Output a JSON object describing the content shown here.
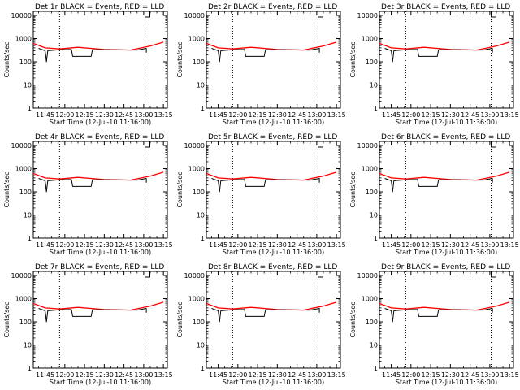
{
  "chart_data": [
    {
      "type": "line",
      "title": "Det 1r BLACK = Events, RED = LLD",
      "xlabel": "Start Time (12-Jul-10 11:36:00)",
      "ylabel": "Counts/sec",
      "x_tick_labels": [
        "11:45",
        "12:00",
        "12:15",
        "12:30",
        "12:45",
        "13:00",
        "13:15"
      ],
      "y_tick_labels": [
        "1",
        "10",
        "100",
        "1000",
        "10000"
      ],
      "xlim": [
        "11:36",
        "13:18"
      ],
      "ylim": [
        1,
        15000
      ],
      "y_scale": "log",
      "vlines": [
        "11:56",
        "13:01"
      ],
      "series": [
        {
          "color": "#ff0000",
          "x": [
            "11:36",
            "11:45",
            "11:56",
            "12:10",
            "12:30",
            "12:50",
            "13:05",
            "13:15"
          ],
          "values": [
            620,
            400,
            360,
            420,
            340,
            320,
            480,
            700
          ]
        },
        {
          "color": "#000000",
          "x": [
            "11:40",
            "11:45",
            "11:46",
            "11:47",
            "11:56",
            "12:05",
            "12:06",
            "12:20",
            "12:21",
            "12:35",
            "12:55",
            "13:02",
            "13:02"
          ],
          "values": [
            380,
            300,
            100,
            300,
            330,
            340,
            170,
            170,
            330,
            330,
            320,
            380,
            250
          ]
        }
      ]
    },
    {
      "type": "line",
      "title": "Det 2r BLACK = Events, RED = LLD",
      "xlabel": "Start Time (12-Jul-10 11:36:00)",
      "ylabel": "Counts/sec",
      "x_tick_labels": [
        "11:45",
        "12:00",
        "12:15",
        "12:30",
        "12:45",
        "13:00",
        "13:15"
      ],
      "y_tick_labels": [
        "1",
        "10",
        "100",
        "1000",
        "10000"
      ],
      "xlim": [
        "11:36",
        "13:18"
      ],
      "ylim": [
        1,
        15000
      ],
      "y_scale": "log",
      "vlines": [
        "11:56",
        "13:01"
      ],
      "series": [
        {
          "color": "#ff0000",
          "x": [
            "11:36",
            "11:45",
            "11:56",
            "12:10",
            "12:30",
            "12:50",
            "13:05",
            "13:15"
          ],
          "values": [
            620,
            400,
            360,
            420,
            340,
            320,
            480,
            700
          ]
        },
        {
          "color": "#000000",
          "x": [
            "11:40",
            "11:45",
            "11:46",
            "11:47",
            "11:56",
            "12:05",
            "12:06",
            "12:20",
            "12:21",
            "12:35",
            "12:55",
            "13:02",
            "13:02"
          ],
          "values": [
            380,
            300,
            100,
            300,
            330,
            340,
            170,
            170,
            330,
            330,
            320,
            380,
            250
          ]
        }
      ]
    },
    {
      "type": "line",
      "title": "Det 3r BLACK = Events, RED = LLD",
      "xlabel": "Start Time (12-Jul-10 11:36:00)",
      "ylabel": "Counts/sec",
      "x_tick_labels": [
        "11:45",
        "12:00",
        "12:15",
        "12:30",
        "12:45",
        "13:00",
        "13:15"
      ],
      "y_tick_labels": [
        "1",
        "10",
        "100",
        "1000",
        "10000"
      ],
      "xlim": [
        "11:36",
        "13:18"
      ],
      "ylim": [
        1,
        15000
      ],
      "y_scale": "log",
      "vlines": [
        "11:56",
        "13:01"
      ],
      "series": [
        {
          "color": "#ff0000",
          "x": [
            "11:36",
            "11:45",
            "11:56",
            "12:10",
            "12:30",
            "12:50",
            "13:05",
            "13:15"
          ],
          "values": [
            620,
            400,
            360,
            420,
            340,
            320,
            480,
            700
          ]
        },
        {
          "color": "#000000",
          "x": [
            "11:40",
            "11:45",
            "11:46",
            "11:47",
            "11:56",
            "12:05",
            "12:06",
            "12:20",
            "12:21",
            "12:35",
            "12:55",
            "13:02",
            "13:02"
          ],
          "values": [
            380,
            300,
            100,
            300,
            330,
            340,
            170,
            170,
            330,
            330,
            320,
            380,
            250
          ]
        }
      ]
    },
    {
      "type": "line",
      "title": "Det 4r BLACK = Events, RED = LLD",
      "xlabel": "Start Time (12-Jul-10 11:36:00)",
      "ylabel": "Counts/sec",
      "x_tick_labels": [
        "11:45",
        "12:00",
        "12:15",
        "12:30",
        "12:45",
        "13:00",
        "13:15"
      ],
      "y_tick_labels": [
        "1",
        "10",
        "100",
        "1000",
        "10000"
      ],
      "xlim": [
        "11:36",
        "13:18"
      ],
      "ylim": [
        1,
        15000
      ],
      "y_scale": "log",
      "vlines": [
        "11:56",
        "13:01"
      ],
      "series": [
        {
          "color": "#ff0000",
          "x": [
            "11:36",
            "11:45",
            "11:56",
            "12:10",
            "12:30",
            "12:50",
            "13:05",
            "13:15"
          ],
          "values": [
            620,
            400,
            360,
            420,
            340,
            320,
            480,
            700
          ]
        },
        {
          "color": "#000000",
          "x": [
            "11:40",
            "11:45",
            "11:46",
            "11:47",
            "11:56",
            "12:05",
            "12:06",
            "12:20",
            "12:21",
            "12:35",
            "12:55",
            "13:02",
            "13:02"
          ],
          "values": [
            380,
            300,
            100,
            300,
            330,
            340,
            170,
            170,
            330,
            330,
            320,
            380,
            250
          ]
        }
      ]
    },
    {
      "type": "line",
      "title": "Det 5r BLACK = Events, RED = LLD",
      "xlabel": "Start Time (12-Jul-10 11:36:00)",
      "ylabel": "Counts/sec",
      "x_tick_labels": [
        "11:45",
        "12:00",
        "12:15",
        "12:30",
        "12:45",
        "13:00",
        "13:15"
      ],
      "y_tick_labels": [
        "1",
        "10",
        "100",
        "1000",
        "10000"
      ],
      "xlim": [
        "11:36",
        "13:18"
      ],
      "ylim": [
        1,
        15000
      ],
      "y_scale": "log",
      "vlines": [
        "11:56",
        "13:01"
      ],
      "series": [
        {
          "color": "#ff0000",
          "x": [
            "11:36",
            "11:45",
            "11:56",
            "12:10",
            "12:30",
            "12:50",
            "13:05",
            "13:15"
          ],
          "values": [
            620,
            400,
            360,
            420,
            340,
            320,
            480,
            700
          ]
        },
        {
          "color": "#000000",
          "x": [
            "11:40",
            "11:45",
            "11:46",
            "11:47",
            "11:56",
            "12:05",
            "12:06",
            "12:20",
            "12:21",
            "12:35",
            "12:55",
            "13:02",
            "13:02"
          ],
          "values": [
            380,
            300,
            100,
            300,
            330,
            340,
            170,
            170,
            330,
            330,
            320,
            380,
            250
          ]
        }
      ]
    },
    {
      "type": "line",
      "title": "Det 6r BLACK = Events, RED = LLD",
      "xlabel": "Start Time (12-Jul-10 11:36:00)",
      "ylabel": "Counts/sec",
      "x_tick_labels": [
        "11:45",
        "12:00",
        "12:15",
        "12:30",
        "12:45",
        "13:00",
        "13:15"
      ],
      "y_tick_labels": [
        "1",
        "10",
        "100",
        "1000",
        "10000"
      ],
      "xlim": [
        "11:36",
        "13:18"
      ],
      "ylim": [
        1,
        15000
      ],
      "y_scale": "log",
      "vlines": [
        "11:56",
        "13:01"
      ],
      "series": [
        {
          "color": "#ff0000",
          "x": [
            "11:36",
            "11:45",
            "11:56",
            "12:10",
            "12:30",
            "12:50",
            "13:05",
            "13:15"
          ],
          "values": [
            620,
            400,
            360,
            420,
            340,
            320,
            480,
            700
          ]
        },
        {
          "color": "#000000",
          "x": [
            "11:40",
            "11:45",
            "11:46",
            "11:47",
            "11:56",
            "12:05",
            "12:06",
            "12:20",
            "12:21",
            "12:35",
            "12:55",
            "13:02",
            "13:02"
          ],
          "values": [
            380,
            300,
            100,
            300,
            330,
            340,
            170,
            170,
            330,
            330,
            320,
            380,
            250
          ]
        }
      ]
    },
    {
      "type": "line",
      "title": "Det 7r BLACK = Events, RED = LLD",
      "xlabel": "Start Time (12-Jul-10 11:36:00)",
      "ylabel": "Counts/sec",
      "x_tick_labels": [
        "11:45",
        "12:00",
        "12:15",
        "12:30",
        "12:45",
        "13:00",
        "13:15"
      ],
      "y_tick_labels": [
        "1",
        "10",
        "100",
        "1000",
        "10000"
      ],
      "xlim": [
        "11:36",
        "13:18"
      ],
      "ylim": [
        1,
        15000
      ],
      "y_scale": "log",
      "vlines": [
        "11:56",
        "13:01"
      ],
      "series": [
        {
          "color": "#ff0000",
          "x": [
            "11:36",
            "11:45",
            "11:56",
            "12:10",
            "12:30",
            "12:50",
            "13:05",
            "13:15"
          ],
          "values": [
            620,
            400,
            360,
            420,
            340,
            320,
            480,
            700
          ]
        },
        {
          "color": "#000000",
          "x": [
            "11:40",
            "11:45",
            "11:46",
            "11:47",
            "11:56",
            "12:05",
            "12:06",
            "12:20",
            "12:21",
            "12:35",
            "12:55",
            "13:02",
            "13:02"
          ],
          "values": [
            380,
            300,
            100,
            300,
            330,
            340,
            170,
            170,
            330,
            330,
            320,
            380,
            250
          ]
        }
      ]
    },
    {
      "type": "line",
      "title": "Det 8r BLACK = Events, RED = LLD",
      "xlabel": "Start Time (12-Jul-10 11:36:00)",
      "ylabel": "Counts/sec",
      "x_tick_labels": [
        "11:45",
        "12:00",
        "12:15",
        "12:30",
        "12:45",
        "13:00",
        "13:15"
      ],
      "y_tick_labels": [
        "1",
        "10",
        "100",
        "1000",
        "10000"
      ],
      "xlim": [
        "11:36",
        "13:18"
      ],
      "ylim": [
        1,
        15000
      ],
      "y_scale": "log",
      "vlines": [
        "11:56",
        "13:01"
      ],
      "series": [
        {
          "color": "#ff0000",
          "x": [
            "11:36",
            "11:45",
            "11:56",
            "12:10",
            "12:30",
            "12:50",
            "13:05",
            "13:15"
          ],
          "values": [
            620,
            400,
            360,
            420,
            340,
            320,
            480,
            700
          ]
        },
        {
          "color": "#000000",
          "x": [
            "11:40",
            "11:45",
            "11:46",
            "11:47",
            "11:56",
            "12:05",
            "12:06",
            "12:20",
            "12:21",
            "12:35",
            "12:55",
            "13:02",
            "13:02"
          ],
          "values": [
            380,
            300,
            100,
            300,
            330,
            340,
            170,
            170,
            330,
            330,
            320,
            380,
            250
          ]
        }
      ]
    },
    {
      "type": "line",
      "title": "Det 9r BLACK = Events, RED = LLD",
      "xlabel": "Start Time (12-Jul-10 11:36:00)",
      "ylabel": "Counts/sec",
      "x_tick_labels": [
        "11:45",
        "12:00",
        "12:15",
        "12:30",
        "12:45",
        "13:00",
        "13:15"
      ],
      "y_tick_labels": [
        "1",
        "10",
        "100",
        "1000",
        "10000"
      ],
      "xlim": [
        "11:36",
        "13:18"
      ],
      "ylim": [
        1,
        15000
      ],
      "y_scale": "log",
      "vlines": [
        "11:56",
        "13:01"
      ],
      "series": [
        {
          "color": "#ff0000",
          "x": [
            "11:36",
            "11:45",
            "11:56",
            "12:10",
            "12:30",
            "12:50",
            "13:05",
            "13:15"
          ],
          "values": [
            620,
            400,
            360,
            420,
            340,
            320,
            480,
            700
          ]
        },
        {
          "color": "#000000",
          "x": [
            "11:40",
            "11:45",
            "11:46",
            "11:47",
            "11:56",
            "12:05",
            "12:06",
            "12:20",
            "12:21",
            "12:35",
            "12:55",
            "13:02",
            "13:02"
          ],
          "values": [
            380,
            300,
            100,
            300,
            330,
            340,
            170,
            170,
            330,
            330,
            320,
            380,
            250
          ]
        }
      ]
    }
  ]
}
